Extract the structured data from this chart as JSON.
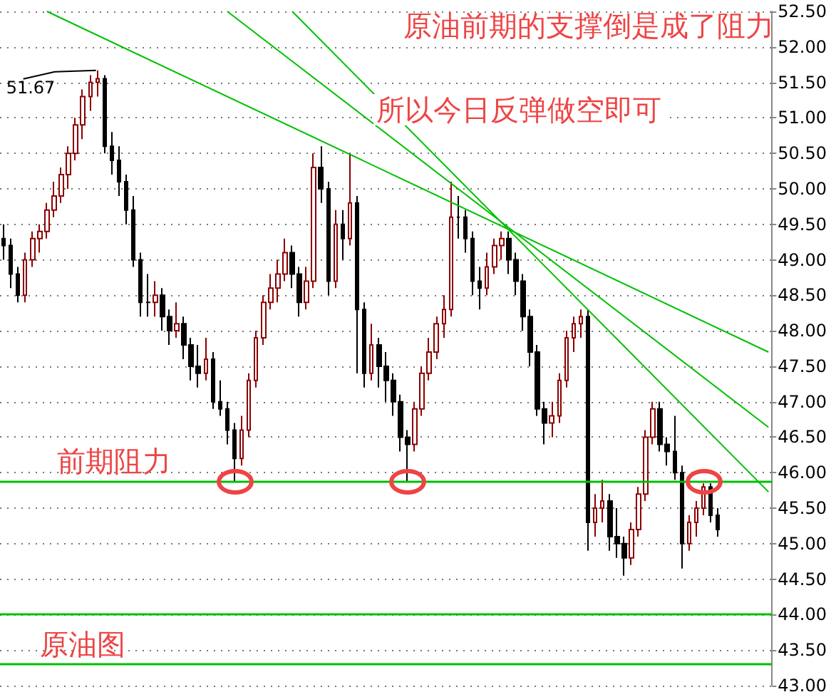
{
  "chart_data": {
    "type": "candlestick",
    "categories": [
      null,
      null,
      null,
      null,
      null,
      null,
      null,
      null,
      null,
      null,
      null,
      null,
      null,
      null,
      null,
      null,
      null,
      null,
      null,
      null,
      null,
      null,
      null,
      null,
      null,
      null,
      null,
      null,
      null,
      null,
      null,
      null,
      null,
      null,
      null,
      null,
      null,
      null,
      null,
      null,
      null,
      null,
      null,
      null,
      null,
      null,
      null,
      null,
      null,
      null,
      null,
      null,
      null,
      null,
      null,
      null,
      null,
      null,
      null,
      null,
      null,
      null,
      null,
      null,
      null,
      null,
      null,
      null,
      null,
      null,
      null,
      null,
      null,
      null,
      null,
      null,
      null,
      null,
      null,
      null,
      null,
      null,
      null,
      null,
      null,
      null,
      null,
      null,
      null,
      null,
      null,
      null,
      null,
      null,
      null,
      null,
      null,
      null,
      null,
      null,
      null,
      null,
      null,
      null,
      null,
      null,
      null
    ],
    "ohlc": [
      [
        49.3,
        49.5,
        49.0,
        49.2
      ],
      [
        49.2,
        49.3,
        48.6,
        48.8
      ],
      [
        48.8,
        48.9,
        48.4,
        48.5
      ],
      [
        48.5,
        49.1,
        48.4,
        49.0
      ],
      [
        49.0,
        49.4,
        48.9,
        49.3
      ],
      [
        49.3,
        49.5,
        49.1,
        49.4
      ],
      [
        49.4,
        49.8,
        49.3,
        49.7
      ],
      [
        49.7,
        50.1,
        49.6,
        49.9
      ],
      [
        49.9,
        50.3,
        49.8,
        50.2
      ],
      [
        50.2,
        50.6,
        50.0,
        50.5
      ],
      [
        50.5,
        51.0,
        50.4,
        50.9
      ],
      [
        50.9,
        51.4,
        50.7,
        51.3
      ],
      [
        51.3,
        51.6,
        51.1,
        51.5
      ],
      [
        51.5,
        51.67,
        51.3,
        51.55
      ],
      [
        51.55,
        51.6,
        50.5,
        50.6
      ],
      [
        50.6,
        50.8,
        50.2,
        50.4
      ],
      [
        50.4,
        50.6,
        49.9,
        50.1
      ],
      [
        50.1,
        50.2,
        49.5,
        49.7
      ],
      [
        49.7,
        49.9,
        48.9,
        49.0
      ],
      [
        49.0,
        49.1,
        48.2,
        48.4
      ],
      [
        48.4,
        48.8,
        48.2,
        48.4
      ],
      [
        48.4,
        48.7,
        48.2,
        48.5
      ],
      [
        48.5,
        48.6,
        48.0,
        48.2
      ],
      [
        48.2,
        48.3,
        47.8,
        48.0
      ],
      [
        48.0,
        48.4,
        47.9,
        48.1
      ],
      [
        48.1,
        48.2,
        47.6,
        47.8
      ],
      [
        47.8,
        47.9,
        47.3,
        47.5
      ],
      [
        47.5,
        47.8,
        47.2,
        47.4
      ],
      [
        47.4,
        47.9,
        47.3,
        47.6
      ],
      [
        47.6,
        47.7,
        46.9,
        47.0
      ],
      [
        47.0,
        47.3,
        46.8,
        46.9
      ],
      [
        46.9,
        47.0,
        46.4,
        46.6
      ],
      [
        46.6,
        46.7,
        45.88,
        46.2
      ],
      [
        46.2,
        46.8,
        46.1,
        46.6
      ],
      [
        46.6,
        47.4,
        46.5,
        47.3
      ],
      [
        47.3,
        48.0,
        47.2,
        47.9
      ],
      [
        47.9,
        48.5,
        47.8,
        48.4
      ],
      [
        48.4,
        48.8,
        48.3,
        48.6
      ],
      [
        48.6,
        49.0,
        48.4,
        48.8
      ],
      [
        48.8,
        49.3,
        48.7,
        49.1
      ],
      [
        49.1,
        49.2,
        48.6,
        48.8
      ],
      [
        48.8,
        48.9,
        48.2,
        48.4
      ],
      [
        48.4,
        48.9,
        48.3,
        48.7
      ],
      [
        48.7,
        50.5,
        48.6,
        50.3
      ],
      [
        50.3,
        50.6,
        49.8,
        50.0
      ],
      [
        50.0,
        50.1,
        48.5,
        48.7
      ],
      [
        48.7,
        49.7,
        48.6,
        49.5
      ],
      [
        49.5,
        49.7,
        49.0,
        49.3
      ],
      [
        49.3,
        50.5,
        49.2,
        49.8
      ],
      [
        49.8,
        49.9,
        47.4,
        48.3
      ],
      [
        48.3,
        48.4,
        47.2,
        47.4
      ],
      [
        47.4,
        48.1,
        47.3,
        47.8
      ],
      [
        47.8,
        47.9,
        47.2,
        47.5
      ],
      [
        47.5,
        47.7,
        47.0,
        47.3
      ],
      [
        47.3,
        47.4,
        46.8,
        47.0
      ],
      [
        47.0,
        47.1,
        46.3,
        46.5
      ],
      [
        46.5,
        46.6,
        45.88,
        46.4
      ],
      [
        46.4,
        47.0,
        46.3,
        46.9
      ],
      [
        46.9,
        47.5,
        46.8,
        47.4
      ],
      [
        47.4,
        47.9,
        47.3,
        47.7
      ],
      [
        47.7,
        48.2,
        47.6,
        48.1
      ],
      [
        48.1,
        48.5,
        47.9,
        48.3
      ],
      [
        48.3,
        50.1,
        48.2,
        49.6
      ],
      [
        49.6,
        49.9,
        49.3,
        49.6
      ],
      [
        49.6,
        49.7,
        49.1,
        49.3
      ],
      [
        49.3,
        49.4,
        48.5,
        48.7
      ],
      [
        48.7,
        48.9,
        48.3,
        48.6
      ],
      [
        48.6,
        49.1,
        48.5,
        48.9
      ],
      [
        48.9,
        49.3,
        48.8,
        49.2
      ],
      [
        49.2,
        49.4,
        49.0,
        49.3
      ],
      [
        49.3,
        49.4,
        48.8,
        49.0
      ],
      [
        49.0,
        49.1,
        48.5,
        48.7
      ],
      [
        48.7,
        48.8,
        48.0,
        48.2
      ],
      [
        48.2,
        48.3,
        47.5,
        47.7
      ],
      [
        47.7,
        47.8,
        46.8,
        46.9
      ],
      [
        46.9,
        47.0,
        46.4,
        46.7
      ],
      [
        46.7,
        47.0,
        46.5,
        46.8
      ],
      [
        46.8,
        47.4,
        46.7,
        47.3
      ],
      [
        47.3,
        48.0,
        47.2,
        47.9
      ],
      [
        47.9,
        48.2,
        47.7,
        48.1
      ],
      [
        48.1,
        48.3,
        47.9,
        48.2
      ],
      [
        48.2,
        48.3,
        44.9,
        45.3
      ],
      [
        45.3,
        45.7,
        45.1,
        45.5
      ],
      [
        45.5,
        45.9,
        45.3,
        45.6
      ],
      [
        45.6,
        45.7,
        44.9,
        45.1
      ],
      [
        45.1,
        45.5,
        44.8,
        45.0
      ],
      [
        45.0,
        45.1,
        44.55,
        44.8
      ],
      [
        44.8,
        45.3,
        44.7,
        45.2
      ],
      [
        45.2,
        45.8,
        45.1,
        45.7
      ],
      [
        45.7,
        46.6,
        45.6,
        46.5
      ],
      [
        46.5,
        47.0,
        46.4,
        46.9
      ],
      [
        46.9,
        47.0,
        46.3,
        46.4
      ],
      [
        46.4,
        46.5,
        46.1,
        46.3
      ],
      [
        46.3,
        46.8,
        45.9,
        46.0
      ],
      [
        46.0,
        46.1,
        44.65,
        45.0
      ],
      [
        45.0,
        45.4,
        44.9,
        45.3
      ],
      [
        45.3,
        45.6,
        45.1,
        45.5
      ],
      [
        45.5,
        45.85,
        45.4,
        45.8
      ],
      [
        45.8,
        45.85,
        45.3,
        45.4
      ],
      [
        45.4,
        45.5,
        45.1,
        45.2
      ],
      null,
      null,
      null,
      null,
      null,
      null,
      null
    ],
    "colors": [
      "#000000",
      "#000000",
      "#000000",
      "#8b0000",
      "#8b0000",
      "#8b0000",
      "#8b0000",
      "#8b0000",
      "#8b0000",
      "#8b0000",
      "#8b0000",
      "#8b0000",
      "#8b0000",
      "#8b0000",
      "#000000",
      "#000000",
      "#000000",
      "#000000",
      "#000000",
      "#000000",
      "#000000",
      "#8b0000",
      "#000000",
      "#000000",
      "#8b0000",
      "#000000",
      "#000000",
      "#000000",
      "#8b0000",
      "#000000",
      "#000000",
      "#000000",
      "#000000",
      "#8b0000",
      "#8b0000",
      "#8b0000",
      "#8b0000",
      "#8b0000",
      "#8b0000",
      "#8b0000",
      "#000000",
      "#000000",
      "#8b0000",
      "#8b0000",
      "#000000",
      "#000000",
      "#8b0000",
      "#000000",
      "#8b0000",
      "#000000",
      "#000000",
      "#8b0000",
      "#000000",
      "#000000",
      "#000000",
      "#000000",
      "#000000",
      "#8b0000",
      "#8b0000",
      "#8b0000",
      "#8b0000",
      "#8b0000",
      "#8b0000",
      "#000000",
      "#000000",
      "#000000",
      "#000000",
      "#8b0000",
      "#8b0000",
      "#8b0000",
      "#000000",
      "#000000",
      "#000000",
      "#000000",
      "#000000",
      "#000000",
      "#8b0000",
      "#8b0000",
      "#8b0000",
      "#8b0000",
      "#8b0000",
      "#000000",
      "#8b0000",
      "#8b0000",
      "#000000",
      "#000000",
      "#000000",
      "#8b0000",
      "#8b0000",
      "#8b0000",
      "#8b0000",
      "#000000",
      "#000000",
      "#000000",
      "#000000",
      "#8b0000",
      "#8b0000",
      "#8b0000",
      "#000000",
      "#000000",
      null,
      null,
      null,
      null,
      null,
      null,
      null
    ],
    "series": [
      {
        "type": "line",
        "color": "#00c000",
        "values": [
          null,
          null,
          null,
          null,
          null,
          null,
          52.5,
          null,
          null,
          null,
          null,
          null,
          null,
          null,
          null,
          null,
          null,
          null,
          null,
          null,
          null,
          null,
          null,
          null,
          null,
          null,
          null,
          null,
          null,
          null,
          null,
          null,
          null,
          null,
          null,
          null,
          null,
          null,
          null,
          null,
          null,
          null,
          null,
          null,
          null,
          null,
          null,
          null,
          null,
          null,
          null,
          null,
          null,
          null,
          null,
          null,
          null,
          null,
          null,
          null,
          null,
          null,
          null,
          null,
          null,
          null,
          null,
          null,
          null,
          null,
          null,
          null,
          null,
          null,
          null,
          null,
          null,
          null,
          null,
          null,
          null,
          null,
          null,
          null,
          null,
          null,
          null,
          null,
          null,
          null,
          null,
          null,
          null,
          null,
          null,
          null,
          null,
          null,
          null,
          null,
          null,
          null,
          null,
          null,
          null,
          null,
          47.7
        ]
      },
      {
        "type": "line",
        "color": "#00c000",
        "values": [
          null,
          null,
          null,
          null,
          null,
          null,
          null,
          null,
          null,
          null,
          null,
          null,
          null,
          null,
          null,
          null,
          null,
          null,
          null,
          null,
          null,
          null,
          null,
          null,
          null,
          null,
          null,
          null,
          null,
          null,
          null,
          52.5,
          null,
          null,
          null,
          null,
          null,
          null,
          null,
          null,
          null,
          null,
          null,
          null,
          null,
          null,
          null,
          null,
          null,
          null,
          null,
          null,
          null,
          null,
          null,
          null,
          null,
          null,
          null,
          null,
          null,
          null,
          null,
          null,
          null,
          null,
          null,
          null,
          null,
          null,
          null,
          null,
          null,
          null,
          null,
          null,
          null,
          null,
          null,
          null,
          null,
          null,
          null,
          null,
          null,
          null,
          null,
          null,
          null,
          null,
          null,
          null,
          null,
          null,
          null,
          null,
          null,
          null,
          null,
          null,
          null,
          null,
          null,
          null,
          null,
          null,
          46.64
        ]
      },
      {
        "type": "line",
        "color": "#00c000",
        "values": [
          null,
          null,
          null,
          null,
          null,
          null,
          null,
          null,
          null,
          null,
          null,
          null,
          null,
          null,
          null,
          null,
          null,
          null,
          null,
          null,
          null,
          null,
          null,
          null,
          null,
          null,
          null,
          null,
          null,
          null,
          null,
          null,
          null,
          null,
          null,
          null,
          null,
          null,
          null,
          null,
          52.5,
          null,
          null,
          null,
          null,
          null,
          null,
          null,
          null,
          null,
          null,
          null,
          null,
          null,
          null,
          null,
          null,
          null,
          null,
          null,
          null,
          null,
          null,
          null,
          null,
          null,
          null,
          null,
          null,
          null,
          null,
          null,
          null,
          null,
          null,
          null,
          null,
          null,
          null,
          null,
          null,
          null,
          null,
          null,
          null,
          null,
          null,
          null,
          null,
          null,
          null,
          null,
          null,
          null,
          null,
          null,
          null,
          null,
          null,
          null,
          null,
          null,
          null,
          null,
          null,
          null,
          45.73
        ]
      }
    ],
    "line_style": "solid",
    "ylim": [
      43,
      52.5
    ],
    "yticks": [
      {
        "value": 43,
        "label": "43.00"
      },
      {
        "value": 43.5,
        "label": "43.50"
      },
      {
        "value": 44,
        "label": "44.00"
      },
      {
        "value": 44.5,
        "label": "44.50"
      },
      {
        "value": 45,
        "label": "45.00"
      },
      {
        "value": 45.5,
        "label": "45.50"
      },
      {
        "value": 46,
        "label": "46.00"
      },
      {
        "value": 46.5,
        "label": "46.50"
      },
      {
        "value": 47,
        "label": "47.00"
      },
      {
        "value": 47.5,
        "label": "47.50"
      },
      {
        "value": 48,
        "label": "48.00"
      },
      {
        "value": 48.5,
        "label": "48.50"
      },
      {
        "value": 49,
        "label": "49.00"
      },
      {
        "value": 49.5,
        "label": "49.50"
      },
      {
        "value": 50,
        "label": "50.00"
      },
      {
        "value": 50.5,
        "label": "50.50"
      },
      {
        "value": 51,
        "label": "51.00"
      },
      {
        "value": 51.5,
        "label": "51.50"
      },
      {
        "value": 52,
        "label": "52.00"
      },
      {
        "value": 52.5,
        "label": "52.50"
      }
    ],
    "grid": "y",
    "tick_labels": "y",
    "ref_lines": [
      {
        "axis": "y",
        "value": 45.88,
        "label": "前期阻力",
        "color": "#00c000"
      },
      {
        "axis": "y",
        "value": 44.0,
        "color": "#00c000"
      },
      {
        "axis": "y",
        "value": 43.3,
        "color": "#00c000"
      }
    ],
    "annotations": [
      "原油前期的支撑倒是成了阻力",
      "所以今日反弹做空即可",
      "51.67",
      "原油图"
    ]
  }
}
